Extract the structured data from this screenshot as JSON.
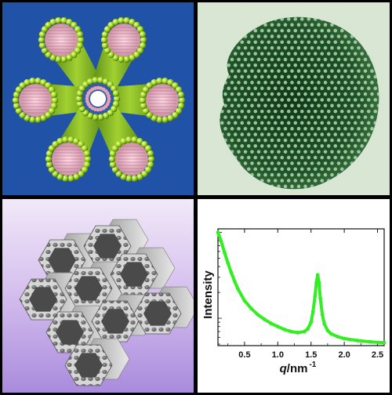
{
  "panels": {
    "model": {
      "icon": "mesoporous-tube-array-icon"
    },
    "tem": {
      "icon": "tem-micrograph-icon"
    },
    "framework": {
      "icon": "hexagonal-framework-icon"
    },
    "saxs": {
      "ylabel": "Intensity",
      "xlabel_q": "q",
      "xlabel_unit": "/nm",
      "xlabel_exp": "-1"
    }
  },
  "chart_data": {
    "type": "line",
    "ylabel": "Intensity",
    "xlabel": "q/nm -1",
    "x_ticks": [
      "0.5",
      "1.0",
      "1.5",
      "2.0",
      "2.5"
    ],
    "xlim": [
      0.1,
      2.6
    ],
    "y_ticks_labeled": false,
    "color": "#33ee22",
    "series": [
      {
        "x": [
          0.1,
          0.15,
          0.2,
          0.25,
          0.3,
          0.35,
          0.4,
          0.5,
          0.6,
          0.7,
          0.8,
          0.9,
          1.0,
          1.1,
          1.2,
          1.3,
          1.4,
          1.45,
          1.5,
          1.53,
          1.56,
          1.58,
          1.6,
          1.62,
          1.64,
          1.67,
          1.7,
          1.75,
          1.8,
          1.9,
          2.0,
          2.2,
          2.4,
          2.6
        ],
        "y": [
          100,
          78,
          58,
          44,
          34,
          27,
          22,
          16,
          13,
          11,
          9.7,
          8.7,
          8.0,
          7.4,
          7.0,
          6.8,
          7.0,
          7.5,
          9.0,
          12,
          18,
          26,
          32,
          26,
          17,
          11,
          8.6,
          7.2,
          6.6,
          6.1,
          5.8,
          5.5,
          5.3,
          5.2
        ]
      }
    ]
  }
}
